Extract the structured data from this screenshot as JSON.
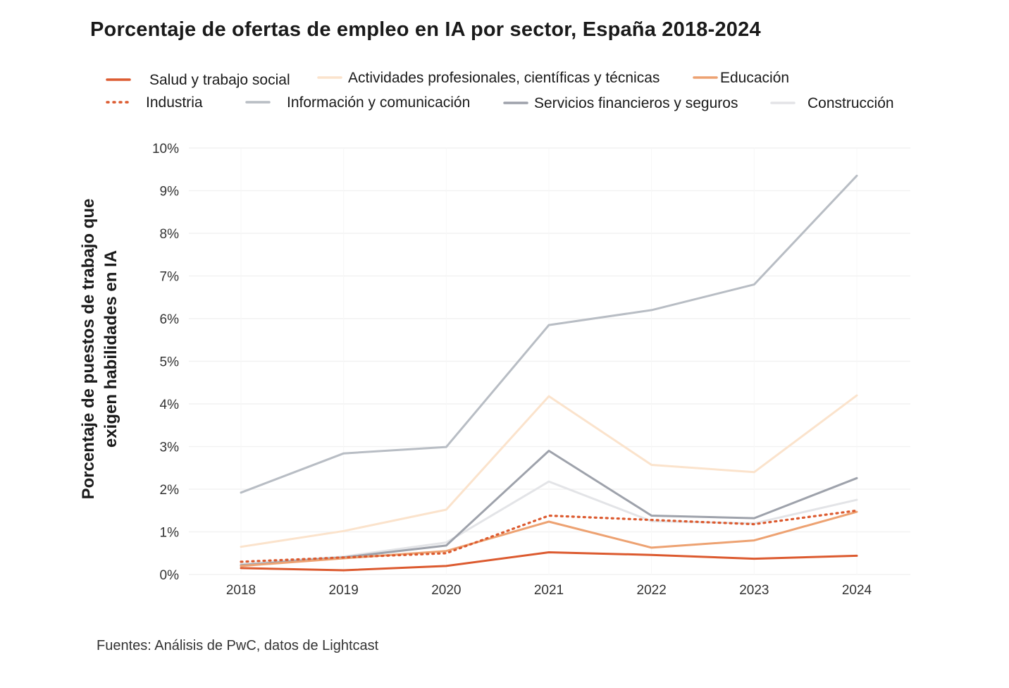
{
  "chart_data": {
    "type": "line",
    "title": "Porcentaje de ofertas de empleo en IA por sector, España 2018-2024",
    "ylabel_line1": "Porcentaje de puestos de trabajo  que",
    "ylabel_line2": "exigen habilidades en IA",
    "xlabel": "",
    "x": [
      "2018",
      "2019",
      "2020",
      "2021",
      "2022",
      "2023",
      "2024"
    ],
    "ylim": [
      0,
      10
    ],
    "y_ticks": [
      "0%",
      "1%",
      "2%",
      "3%",
      "4%",
      "5%",
      "6%",
      "7%",
      "8%",
      "9%",
      "10%"
    ],
    "grid": true,
    "legend_position": "top",
    "series": [
      {
        "name": "Salud y trabajo social",
        "color": "#dc5a2f",
        "dash": "solid",
        "values": [
          0.15,
          0.1,
          0.2,
          0.52,
          0.46,
          0.37,
          0.44
        ]
      },
      {
        "name": "Actividades profesionales, científicas y técnicas",
        "color": "#fbe3cc",
        "dash": "solid",
        "values": [
          0.65,
          1.02,
          1.52,
          4.18,
          2.57,
          2.4,
          4.2
        ]
      },
      {
        "name": "Educación",
        "color": "#eda272",
        "dash": "solid",
        "values": [
          0.2,
          0.38,
          0.55,
          1.24,
          0.63,
          0.8,
          1.47
        ]
      },
      {
        "name": "Industria",
        "color": "#dc5a2f",
        "dash": "dotted",
        "values": [
          0.3,
          0.4,
          0.5,
          1.38,
          1.28,
          1.18,
          1.5
        ]
      },
      {
        "name": "Información y comunicación",
        "color": "#b8bdc4",
        "dash": "solid",
        "values": [
          1.92,
          2.84,
          2.99,
          5.85,
          6.2,
          6.8,
          9.35
        ]
      },
      {
        "name": "Servicios  financieros y seguros",
        "color": "#9ea2ab",
        "dash": "solid",
        "values": [
          0.22,
          0.4,
          0.68,
          2.9,
          1.38,
          1.32,
          2.26
        ]
      },
      {
        "name": "Construcción",
        "color": "#e3e4e7",
        "dash": "solid",
        "values": [
          0.25,
          0.42,
          0.75,
          2.18,
          1.25,
          1.2,
          1.75
        ]
      }
    ]
  },
  "source": "Fuentes: Análisis de PwC, datos de Lightcast"
}
